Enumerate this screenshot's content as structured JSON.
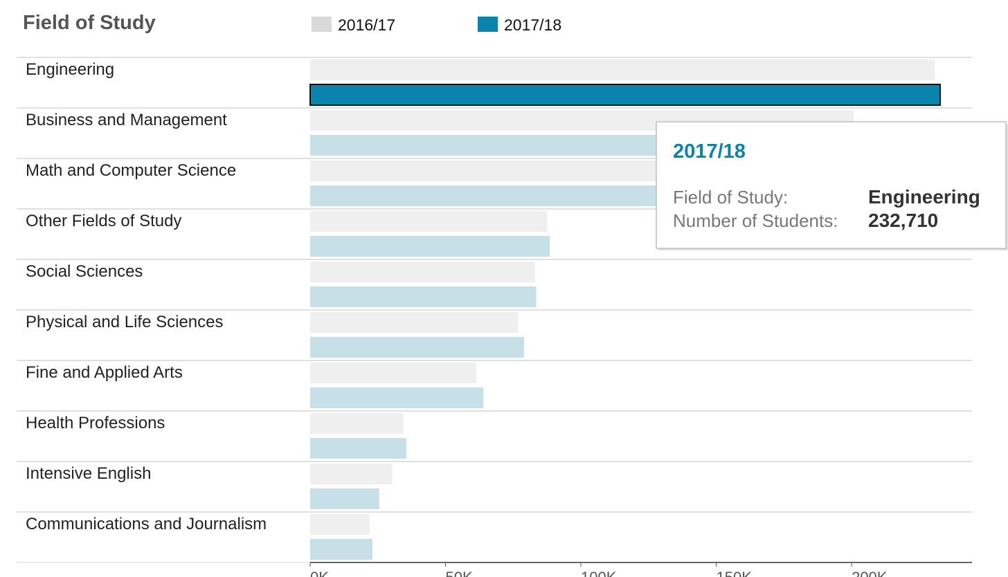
{
  "chart_data": {
    "type": "bar",
    "orientation": "horizontal",
    "category_header": "Field of Study",
    "categories": [
      "Engineering",
      "Business and Management",
      "Math and Computer Science",
      "Other Fields of Study",
      "Social Sciences",
      "Physical and Life Sciences",
      "Fine and Applied Arts",
      "Health Professions",
      "Intensive English",
      "Communications and Journalism"
    ],
    "series": [
      {
        "name": "2016/17",
        "color": "#efefef",
        "values": [
          230710,
          200754,
          203461,
          87556,
          83046,
          76838,
          61341,
          34395,
          30309,
          21913
        ]
      },
      {
        "name": "2017/18",
        "color": "#c7dfe6",
        "values": [
          232710,
          192000,
          185000,
          88500,
          83500,
          79000,
          64000,
          35500,
          25500,
          23000
        ]
      }
    ],
    "highlight_color": "#0b84ad",
    "legend_placement": "top",
    "xlim": [
      0,
      245000
    ],
    "x_ticks": [
      {
        "value": 0,
        "label": "0K"
      },
      {
        "value": 50000,
        "label": "50K"
      },
      {
        "value": 100000,
        "label": "100K"
      },
      {
        "value": 150000,
        "label": "150K"
      },
      {
        "value": 200000,
        "label": "200K"
      }
    ],
    "grid": false
  },
  "tooltip": {
    "title": "2017/18",
    "rows": [
      {
        "key": "Field of Study:",
        "value": "Engineering"
      },
      {
        "key": "Number of Students:",
        "value": "232,710"
      }
    ]
  }
}
